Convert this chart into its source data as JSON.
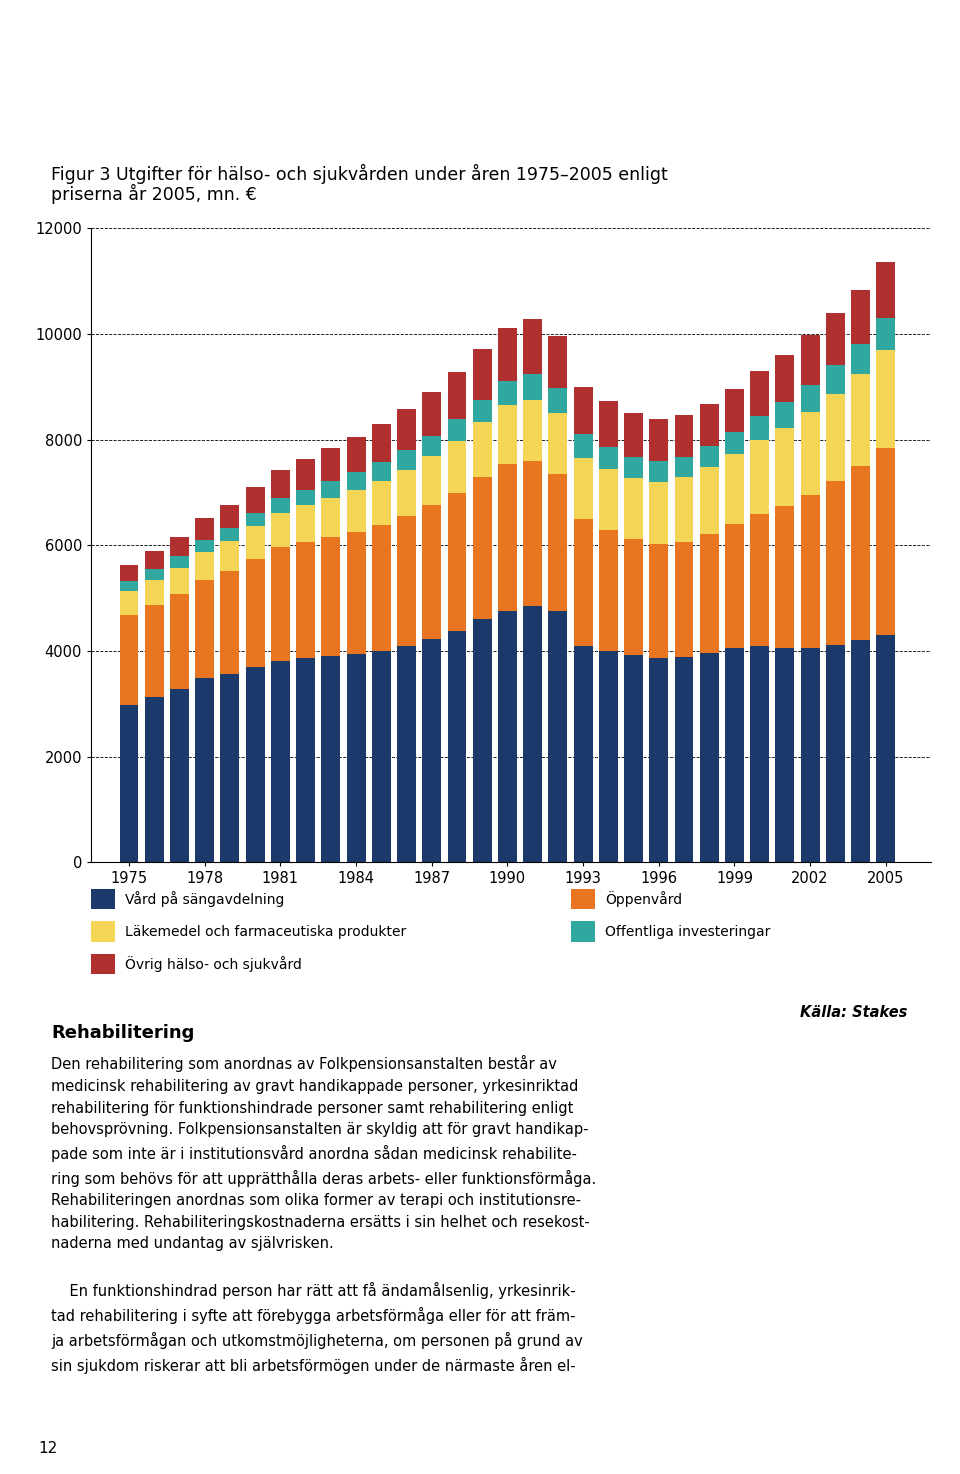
{
  "title_line1": "Figur 3 Utgifter för hälso- och sjukvården under åren 1975–2005 enligt",
  "title_line2": "priserna år 2005, mn. €",
  "years": [
    1975,
    1976,
    1977,
    1978,
    1979,
    1980,
    1981,
    1982,
    1983,
    1984,
    1985,
    1986,
    1987,
    1988,
    1989,
    1990,
    1991,
    1992,
    1993,
    1994,
    1995,
    1996,
    1997,
    1998,
    1999,
    2000,
    2001,
    2002,
    2003,
    2004,
    2005
  ],
  "vard_sangavdelning": [
    2980,
    3130,
    3280,
    3480,
    3560,
    3700,
    3820,
    3860,
    3900,
    3950,
    4000,
    4100,
    4230,
    4380,
    4600,
    4750,
    4850,
    4750,
    4100,
    4000,
    3920,
    3870,
    3890,
    3970,
    4050,
    4100,
    4050,
    4060,
    4120,
    4200,
    4300
  ],
  "oppenvard": [
    1700,
    1750,
    1800,
    1870,
    1950,
    2050,
    2150,
    2200,
    2250,
    2300,
    2380,
    2450,
    2530,
    2620,
    2700,
    2800,
    2750,
    2600,
    2400,
    2300,
    2200,
    2150,
    2180,
    2250,
    2350,
    2500,
    2700,
    2900,
    3100,
    3300,
    3550
  ],
  "lakemedel": [
    450,
    470,
    500,
    530,
    570,
    610,
    650,
    700,
    750,
    800,
    840,
    880,
    930,
    980,
    1030,
    1100,
    1150,
    1150,
    1150,
    1150,
    1150,
    1180,
    1220,
    1270,
    1330,
    1400,
    1480,
    1560,
    1650,
    1740,
    1850
  ],
  "offentliga_inv": [
    200,
    210,
    220,
    230,
    240,
    250,
    270,
    290,
    310,
    330,
    350,
    370,
    390,
    410,
    430,
    460,
    490,
    480,
    450,
    420,
    410,
    400,
    390,
    400,
    420,
    450,
    480,
    520,
    550,
    580,
    600
  ],
  "ovrig": [
    300,
    330,
    360,
    400,
    440,
    490,
    540,
    580,
    630,
    680,
    730,
    780,
    830,
    890,
    950,
    1010,
    1050,
    980,
    900,
    860,
    830,
    800,
    780,
    790,
    820,
    860,
    900,
    940,
    980,
    1020,
    1060
  ],
  "colors": {
    "vard_sangavdelning": "#1b3a6b",
    "oppenvard": "#e87520",
    "lakemedel": "#f5d555",
    "offentliga_inv": "#30a8a0",
    "ovrig": "#b03030"
  },
  "legend_labels": {
    "vard_sangavdelning": "Vård på sängavdelning",
    "oppenvard": "Öppenvård",
    "lakemedel": "Läkemedel och farmaceutiska produkter",
    "offentliga_inv": "Offentliga investeringar",
    "ovrig": "Övrig hälso- och sjukvård"
  },
  "ylim": [
    0,
    12000
  ],
  "yticks": [
    0,
    2000,
    4000,
    6000,
    8000,
    10000,
    12000
  ],
  "xticks": [
    1975,
    1978,
    1981,
    1984,
    1987,
    1990,
    1993,
    1996,
    1999,
    2002,
    2005
  ],
  "source": "Källa: Stakes"
}
